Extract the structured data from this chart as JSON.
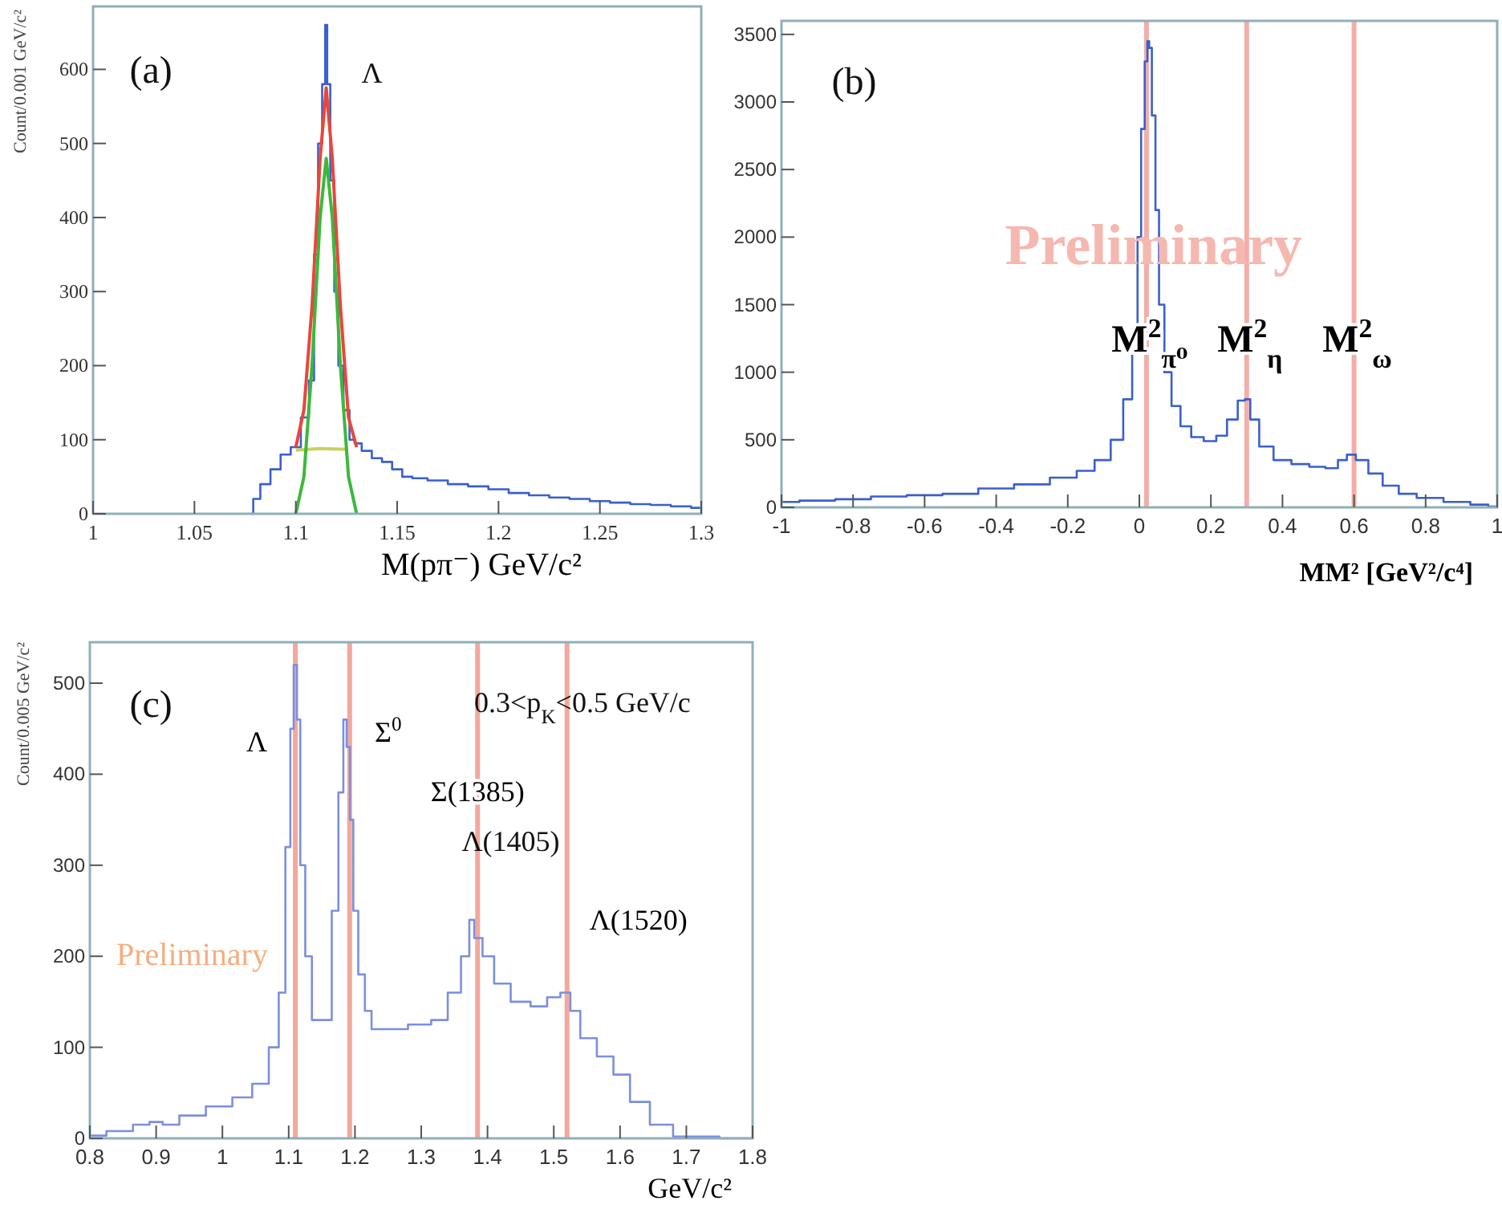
{
  "chart_data": [
    {
      "type": "step",
      "xlabel": "M(pπ⁻)  GeV/c²",
      "ylabel": "Count/0.001 GeV/c²",
      "xlim": [
        1,
        1.3
      ],
      "ylim": [
        0,
        685
      ],
      "xticks": [
        1,
        1.05,
        1.1,
        1.15,
        1.2,
        1.25,
        1.3
      ],
      "yticks": [
        0,
        100,
        200,
        300,
        400,
        500,
        600
      ],
      "series": [
        {
          "type": "line",
          "color": "#c8d060",
          "x": [
            1.1,
            1.112,
            1.125
          ],
          "values": [
            86,
            88,
            87
          ]
        },
        {
          "type": "step",
          "color": "#3a5fcd",
          "x": [
            1.078,
            1.08,
            1.085,
            1.09,
            1.095,
            1.1,
            1.105,
            1.108,
            1.11,
            1.112,
            1.114,
            1.115,
            1.116,
            1.118,
            1.12,
            1.122,
            1.125,
            1.128,
            1.13,
            1.135,
            1.14,
            1.145,
            1.15,
            1.155,
            1.16,
            1.17,
            1.18,
            1.19,
            1.2,
            1.21,
            1.22,
            1.23,
            1.24,
            1.25,
            1.26,
            1.27,
            1.28,
            1.29,
            1.3
          ],
          "values": [
            0,
            20,
            40,
            60,
            80,
            90,
            130,
            180,
            350,
            500,
            580,
            660,
            580,
            450,
            300,
            200,
            140,
            100,
            95,
            85,
            75,
            70,
            60,
            50,
            48,
            45,
            40,
            37,
            33,
            28,
            25,
            22,
            20,
            17,
            15,
            13,
            12,
            10,
            8
          ]
        },
        {
          "type": "line",
          "color": "#e8473b",
          "x": [
            1.1,
            1.104,
            1.108,
            1.112,
            1.115,
            1.118,
            1.122,
            1.126,
            1.13
          ],
          "values": [
            90,
            140,
            280,
            480,
            575,
            480,
            280,
            130,
            90
          ]
        },
        {
          "type": "line",
          "color": "#3cb83c",
          "x": [
            1.1,
            1.104,
            1.108,
            1.112,
            1.115,
            1.118,
            1.122,
            1.126,
            1.13
          ],
          "values": [
            0,
            50,
            200,
            400,
            480,
            400,
            200,
            50,
            0
          ]
        }
      ],
      "annotations": [
        "(a)",
        {
          "text": "Λ",
          "x": 1.115,
          "y": 660
        }
      ]
    },
    {
      "type": "step",
      "xlabel": "MM² [GeV²/c⁴]",
      "xlim": [
        -1,
        1
      ],
      "ylim": [
        0,
        3600
      ],
      "xticks": [
        -1,
        -0.8,
        -0.6,
        -0.4,
        -0.2,
        0,
        0.2,
        0.4,
        0.6,
        0.8,
        1
      ],
      "yticks": [
        0,
        500,
        1000,
        1500,
        2000,
        2500,
        3000,
        3500
      ],
      "series": [
        {
          "type": "step",
          "color": "#3a5fcd",
          "x": [
            -1,
            -0.9,
            -0.8,
            -0.7,
            -0.6,
            -0.5,
            -0.4,
            -0.3,
            -0.2,
            -0.15,
            -0.1,
            -0.06,
            -0.03,
            -0.01,
            0,
            0.01,
            0.02,
            0.025,
            0.03,
            0.04,
            0.05,
            0.06,
            0.08,
            0.1,
            0.13,
            0.16,
            0.2,
            0.23,
            0.26,
            0.29,
            0.3,
            0.32,
            0.35,
            0.4,
            0.45,
            0.5,
            0.54,
            0.57,
            0.59,
            0.62,
            0.66,
            0.7,
            0.75,
            0.8,
            0.9,
            0.95,
            1
          ],
          "values": [
            40,
            50,
            60,
            80,
            90,
            100,
            140,
            170,
            220,
            270,
            350,
            500,
            800,
            1300,
            2000,
            2800,
            3300,
            3450,
            3400,
            2900,
            2200,
            1500,
            1000,
            750,
            600,
            520,
            490,
            530,
            650,
            790,
            800,
            650,
            450,
            350,
            320,
            300,
            290,
            350,
            390,
            350,
            250,
            160,
            100,
            70,
            40,
            20,
            5
          ]
        }
      ],
      "ref_lines": [
        {
          "axis": "x",
          "value": 0.02,
          "label": "M$^{2}$$_{π⁰}$",
          "color": "#f2a09a"
        },
        {
          "axis": "x",
          "value": 0.3,
          "label": "M$^{2}$$_{η}$",
          "color": "#f2a09a"
        },
        {
          "axis": "x",
          "value": 0.6,
          "label": "M$^{2}$$_{ω}$",
          "color": "#f2a09a"
        }
      ],
      "annotations": [
        "(b)",
        "Preliminary"
      ]
    },
    {
      "type": "step",
      "xlabel": "GeV/c²",
      "ylabel": "Count/0.005 GeV/c²",
      "xlim": [
        0.8,
        1.8
      ],
      "ylim": [
        0,
        545
      ],
      "xticks": [
        0.8,
        0.9,
        1,
        1.1,
        1.2,
        1.3,
        1.4,
        1.5,
        1.6,
        1.7,
        1.8
      ],
      "yticks": [
        0,
        100,
        200,
        300,
        400,
        500
      ],
      "series": [
        {
          "type": "step",
          "color": "#7b8fe0",
          "x": [
            0.8,
            0.85,
            0.88,
            0.9,
            0.92,
            0.95,
            1,
            1.03,
            1.06,
            1.08,
            1.09,
            1.1,
            1.105,
            1.11,
            1.115,
            1.12,
            1.13,
            1.14,
            1.16,
            1.17,
            1.18,
            1.185,
            1.19,
            1.195,
            1.2,
            1.21,
            1.22,
            1.23,
            1.26,
            1.3,
            1.33,
            1.35,
            1.37,
            1.375,
            1.385,
            1.4,
            1.42,
            1.45,
            1.48,
            1.5,
            1.52,
            1.53,
            1.55,
            1.58,
            1.6,
            1.63,
            1.66,
            1.7,
            1.8
          ],
          "values": [
            3,
            8,
            15,
            18,
            15,
            25,
            35,
            45,
            60,
            100,
            160,
            320,
            450,
            520,
            460,
            300,
            200,
            130,
            130,
            250,
            380,
            460,
            430,
            350,
            250,
            180,
            140,
            120,
            120,
            125,
            130,
            160,
            200,
            240,
            220,
            200,
            170,
            150,
            145,
            155,
            160,
            140,
            110,
            90,
            70,
            40,
            15,
            2,
            0
          ]
        }
      ],
      "ref_lines": [
        {
          "axis": "x",
          "value": 1.11,
          "label": "Λ",
          "color": "#f29a8a"
        },
        {
          "axis": "x",
          "value": 1.192,
          "label": "Σ$^{0}$",
          "color": "#f29a8a"
        },
        {
          "axis": "x",
          "value": 1.385,
          "label": "Σ(1385)",
          "color": "#f29a8a"
        },
        {
          "axis": "x",
          "value": 1.52,
          "label": "Λ(1520)",
          "color": "#f29a8a"
        }
      ],
      "annotations": [
        "(c)",
        "0.3<p$_{K}$<0.5 GeV/c",
        "Preliminary",
        "Λ(1405)"
      ]
    }
  ]
}
